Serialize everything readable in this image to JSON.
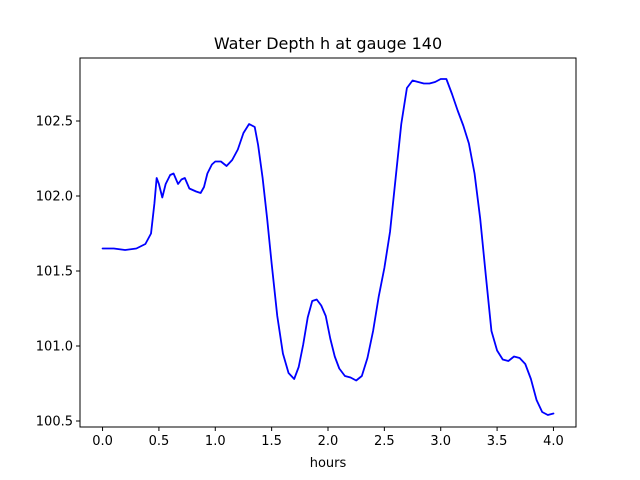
{
  "chart_data": {
    "type": "line",
    "title": "Water Depth h at gauge 140",
    "xlabel": "hours",
    "ylabel": "",
    "xlim": [
      -0.2,
      4.2
    ],
    "ylim": [
      100.46,
      102.92
    ],
    "grid": false,
    "x_ticks": [
      0.0,
      0.5,
      1.0,
      1.5,
      2.0,
      2.5,
      3.0,
      3.5,
      4.0
    ],
    "x_tick_labels": [
      "0.0",
      "0.5",
      "1.0",
      "1.5",
      "2.0",
      "2.5",
      "3.0",
      "3.5",
      "4.0"
    ],
    "y_ticks": [
      100.5,
      101.0,
      101.5,
      102.0,
      102.5
    ],
    "y_tick_labels": [
      "100.5",
      "101.0",
      "101.5",
      "102.0",
      "102.5"
    ],
    "series": [
      {
        "color": "#0000ff",
        "x": [
          0.0,
          0.1,
          0.2,
          0.3,
          0.38,
          0.43,
          0.46,
          0.48,
          0.5,
          0.53,
          0.56,
          0.6,
          0.63,
          0.67,
          0.7,
          0.73,
          0.77,
          0.8,
          0.83,
          0.87,
          0.9,
          0.93,
          0.97,
          1.0,
          1.05,
          1.1,
          1.15,
          1.2,
          1.25,
          1.3,
          1.35,
          1.38,
          1.42,
          1.46,
          1.5,
          1.55,
          1.6,
          1.65,
          1.7,
          1.74,
          1.78,
          1.82,
          1.86,
          1.9,
          1.94,
          1.98,
          2.02,
          2.06,
          2.1,
          2.15,
          2.2,
          2.25,
          2.3,
          2.35,
          2.4,
          2.45,
          2.5,
          2.55,
          2.6,
          2.65,
          2.7,
          2.75,
          2.8,
          2.85,
          2.9,
          2.95,
          3.0,
          3.05,
          3.1,
          3.15,
          3.2,
          3.25,
          3.3,
          3.35,
          3.4,
          3.45,
          3.5,
          3.55,
          3.6,
          3.65,
          3.7,
          3.75,
          3.8,
          3.85,
          3.9,
          3.95,
          4.0
        ],
        "y": [
          101.65,
          101.65,
          101.64,
          101.65,
          101.68,
          101.75,
          101.95,
          102.12,
          102.08,
          101.99,
          102.08,
          102.14,
          102.15,
          102.08,
          102.11,
          102.12,
          102.05,
          102.04,
          102.03,
          102.02,
          102.06,
          102.15,
          102.21,
          102.23,
          102.23,
          102.2,
          102.24,
          102.31,
          102.42,
          102.48,
          102.46,
          102.34,
          102.12,
          101.85,
          101.55,
          101.2,
          100.95,
          100.82,
          100.78,
          100.86,
          101.01,
          101.19,
          101.3,
          101.31,
          101.27,
          101.2,
          101.05,
          100.93,
          100.85,
          100.8,
          100.79,
          100.77,
          100.8,
          100.92,
          101.1,
          101.33,
          101.52,
          101.76,
          102.12,
          102.48,
          102.72,
          102.77,
          102.76,
          102.75,
          102.75,
          102.76,
          102.78,
          102.78,
          102.68,
          102.57,
          102.47,
          102.35,
          102.15,
          101.85,
          101.47,
          101.1,
          100.97,
          100.91,
          100.9,
          100.93,
          100.92,
          100.88,
          100.78,
          100.64,
          100.56,
          100.54,
          100.55
        ]
      }
    ]
  }
}
